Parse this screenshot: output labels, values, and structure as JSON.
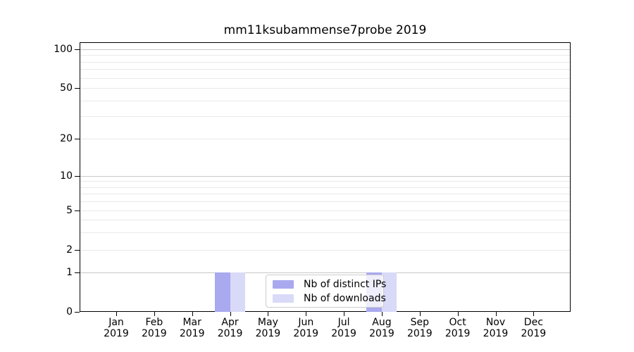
{
  "chart_data": {
    "type": "bar",
    "title": "mm11ksubammense7probe 2019",
    "categories": [
      "Jan",
      "Feb",
      "Mar",
      "Apr",
      "May",
      "Jun",
      "Jul",
      "Aug",
      "Sep",
      "Oct",
      "Nov",
      "Dec"
    ],
    "category_year": "2019",
    "series": [
      {
        "name": "Nb of distinct IPs",
        "color": "#a9a9ef",
        "values": [
          0,
          0,
          0,
          1,
          0,
          0,
          0,
          1,
          0,
          0,
          0,
          0
        ]
      },
      {
        "name": "Nb of downloads",
        "color": "#d9d9f8",
        "values": [
          0,
          0,
          0,
          1,
          0,
          0,
          0,
          1,
          0,
          0,
          0,
          0
        ]
      }
    ],
    "xlabel": "",
    "ylabel": "",
    "y_ticks": [
      0,
      1,
      2,
      5,
      10,
      20,
      50,
      100
    ],
    "y_scale": "symlog",
    "ylim": [
      0,
      115
    ],
    "grid": "both",
    "legend": {
      "position": "lower-center-inside",
      "items": [
        "Nb of distinct IPs",
        "Nb of downloads"
      ]
    }
  },
  "colors": {
    "bar_distinct_ips": "#a9a9ef",
    "bar_downloads": "#d9d9f8",
    "grid_major": "#c8c8c8",
    "grid_minor": "#e9e9e9",
    "axis": "#000000",
    "text": "#000000",
    "legend_border": "#cccccc",
    "background": "#ffffff"
  }
}
